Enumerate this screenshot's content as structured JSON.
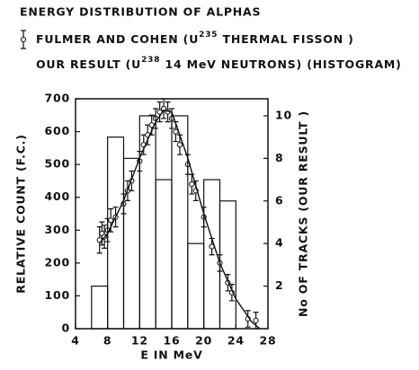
{
  "chart_data": {
    "type": "histogram",
    "title": "ENERGY DISTRIBUTION OF ALPHAS",
    "x_label": "E IN MeV",
    "y_label": "RELATIVE COUNT (F.C.)",
    "y2_label": "No OF TRACKS (OUR RESULT )",
    "xlim": [
      4,
      28
    ],
    "xticks": [
      4,
      8,
      12,
      16,
      20,
      24,
      28
    ],
    "ylim": [
      0,
      700
    ],
    "yticks": [
      0,
      100,
      200,
      300,
      400,
      500,
      600,
      700
    ],
    "y2lim": [
      0,
      10.8
    ],
    "y2ticks": [
      2,
      4,
      6,
      8,
      10
    ],
    "color": "#111111",
    "series": [
      {
        "name": "FULMER AND COHEN (U235 THERMAL FISSON )",
        "type": "errorbar",
        "x": [
          7,
          7.3,
          7.6,
          8,
          8.4,
          9,
          10,
          10.5,
          11,
          12,
          12.5,
          13,
          13.5,
          14,
          14.5,
          15,
          15.5,
          16,
          16.5,
          17,
          18,
          18.5,
          19,
          20,
          21,
          22,
          23,
          23.5,
          25.5,
          26.5
        ],
        "values": [
          270,
          290,
          280,
          300,
          330,
          340,
          380,
          420,
          450,
          510,
          560,
          590,
          620,
          640,
          660,
          670,
          660,
          640,
          600,
          560,
          500,
          440,
          420,
          340,
          250,
          200,
          140,
          110,
          30,
          25
        ],
        "errors": [
          40,
          35,
          35,
          35,
          35,
          30,
          30,
          30,
          30,
          30,
          30,
          30,
          30,
          30,
          30,
          30,
          30,
          30,
          30,
          30,
          30,
          30,
          30,
          30,
          25,
          25,
          25,
          25,
          25,
          25
        ]
      },
      {
        "name": "OUR RESULT (U238 14 MeV NEUTRONS) (HISTOGRAM)",
        "type": "histogram",
        "axis": "y2",
        "bins": [
          6,
          8,
          10,
          12,
          14,
          16,
          18,
          20,
          22,
          24
        ],
        "values": [
          2,
          9,
          8,
          10,
          7,
          10,
          4,
          7,
          6
        ]
      },
      {
        "type": "line",
        "x": [
          7,
          8,
          10,
          12,
          14,
          15,
          16,
          18,
          20,
          22,
          24,
          26,
          27
        ],
        "values": [
          260,
          290,
          390,
          520,
          630,
          665,
          660,
          520,
          350,
          200,
          90,
          20,
          0
        ]
      }
    ]
  }
}
